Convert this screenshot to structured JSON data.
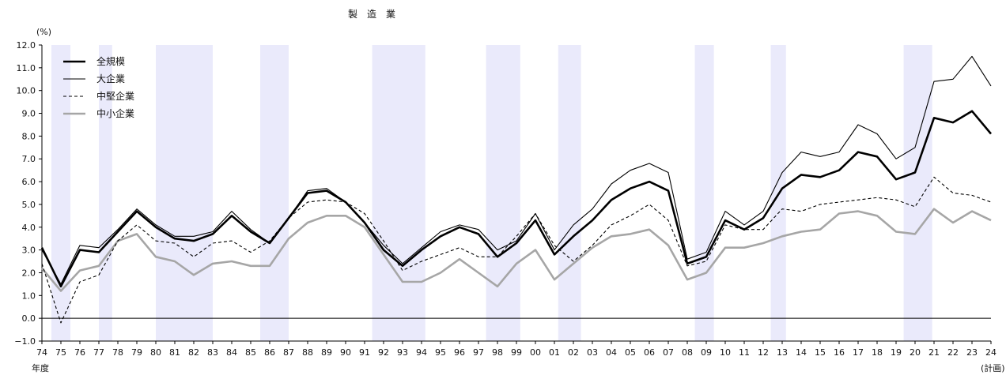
{
  "chart_data": {
    "type": "line",
    "title": "製　造　業",
    "ylabel": "(%)",
    "xlabel": "年度",
    "x_last_note": "(計画)",
    "ylim": [
      -1.0,
      12.0
    ],
    "yticks": [
      "12.0",
      "11.0",
      "10.0",
      "9.0",
      "8.0",
      "7.0",
      "6.0",
      "5.0",
      "4.0",
      "3.0",
      "2.0",
      "1.0",
      "0.0",
      "−1.0"
    ],
    "ytick_values": [
      12,
      11,
      10,
      9,
      8,
      7,
      6,
      5,
      4,
      3,
      2,
      1,
      0,
      -1
    ],
    "categories": [
      "74",
      "75",
      "76",
      "77",
      "78",
      "79",
      "80",
      "81",
      "82",
      "83",
      "84",
      "85",
      "86",
      "87",
      "88",
      "89",
      "90",
      "91",
      "92",
      "93",
      "94",
      "95",
      "96",
      "97",
      "98",
      "99",
      "00",
      "01",
      "02",
      "03",
      "04",
      "05",
      "06",
      "07",
      "08",
      "09",
      "10",
      "11",
      "12",
      "13",
      "14",
      "15",
      "16",
      "17",
      "18",
      "19",
      "20",
      "21",
      "22",
      "23",
      "24"
    ],
    "recession_shading": [
      [
        0.5,
        1.5
      ],
      [
        3.0,
        3.7
      ],
      [
        6.0,
        9.0
      ],
      [
        11.5,
        13.0
      ],
      [
        17.4,
        20.2
      ],
      [
        23.4,
        25.2
      ],
      [
        27.2,
        28.4
      ],
      [
        34.4,
        35.4
      ],
      [
        38.4,
        39.2
      ],
      [
        45.4,
        46.9
      ]
    ],
    "colors": {
      "shade": "#eaeafb",
      "zero_line": "#000000",
      "all": "#000000",
      "large": "#000000",
      "mid": "#000000",
      "small": "#a6a6a6"
    },
    "series": [
      {
        "name": "全規模",
        "style": "thick",
        "values": [
          3.1,
          1.4,
          3.0,
          2.9,
          3.8,
          4.7,
          4.0,
          3.5,
          3.4,
          3.7,
          4.5,
          3.8,
          3.3,
          4.4,
          5.5,
          5.6,
          5.1,
          4.2,
          3.0,
          2.3,
          3.0,
          3.6,
          4.0,
          3.7,
          2.7,
          3.3,
          4.3,
          2.8,
          3.6,
          4.3,
          5.2,
          5.7,
          6.0,
          5.6,
          2.4,
          2.7,
          4.3,
          3.9,
          4.4,
          5.7,
          6.3,
          6.2,
          6.5,
          7.3,
          7.1,
          6.1,
          6.4,
          8.8,
          8.6,
          9.1,
          8.1
        ]
      },
      {
        "name": "大企業",
        "style": "thin",
        "values": [
          3.0,
          1.5,
          3.2,
          3.1,
          3.9,
          4.8,
          4.1,
          3.6,
          3.6,
          3.8,
          4.7,
          3.9,
          3.3,
          4.4,
          5.6,
          5.7,
          5.1,
          4.2,
          3.2,
          2.4,
          3.1,
          3.8,
          4.1,
          3.9,
          3.0,
          3.4,
          4.6,
          3.0,
          4.1,
          4.8,
          5.9,
          6.5,
          6.8,
          6.4,
          2.6,
          2.9,
          4.7,
          4.1,
          4.7,
          6.4,
          7.3,
          7.1,
          7.3,
          8.5,
          8.1,
          7.0,
          7.5,
          10.4,
          10.5,
          11.5,
          10.2
        ]
      },
      {
        "name": "中堅企業",
        "style": "dashed",
        "values": [
          2.4,
          -0.2,
          1.6,
          1.9,
          3.4,
          4.1,
          3.4,
          3.3,
          2.7,
          3.3,
          3.4,
          2.9,
          3.4,
          4.4,
          5.1,
          5.2,
          5.1,
          4.6,
          3.4,
          2.1,
          2.5,
          2.8,
          3.1,
          2.7,
          2.7,
          3.6,
          4.6,
          3.2,
          2.5,
          3.2,
          4.1,
          4.5,
          5.0,
          4.3,
          2.3,
          2.5,
          4.1,
          3.9,
          3.9,
          4.8,
          4.7,
          5.0,
          5.1,
          5.2,
          5.3,
          5.2,
          4.9,
          6.2,
          5.5,
          5.4,
          5.1
        ]
      },
      {
        "name": "中小企業",
        "style": "gray",
        "values": [
          2.2,
          1.2,
          2.1,
          2.3,
          3.4,
          3.7,
          2.7,
          2.5,
          1.9,
          2.4,
          2.5,
          2.3,
          2.3,
          3.5,
          4.2,
          4.5,
          4.5,
          4.0,
          2.8,
          1.6,
          1.6,
          2.0,
          2.6,
          2.0,
          1.4,
          2.4,
          3.0,
          1.7,
          2.4,
          3.1,
          3.6,
          3.7,
          3.9,
          3.2,
          1.7,
          2.0,
          3.1,
          3.1,
          3.3,
          3.6,
          3.8,
          3.9,
          4.6,
          4.7,
          4.5,
          3.8,
          3.7,
          4.8,
          4.2,
          4.7,
          4.3
        ]
      }
    ]
  }
}
